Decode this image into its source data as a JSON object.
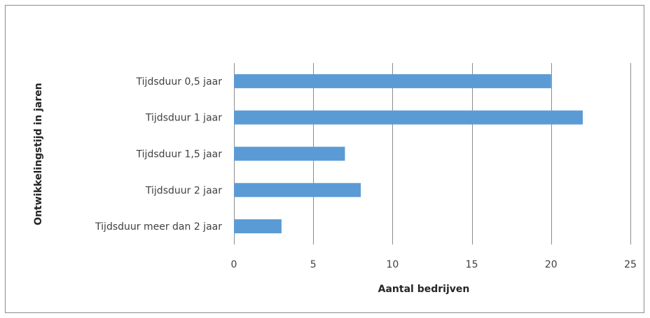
{
  "chart_data": {
    "type": "bar",
    "orientation": "horizontal",
    "categories": [
      "Tijdsduur 0,5 jaar",
      "Tijdsduur 1 jaar",
      "Tijdsduur 1,5 jaar",
      "Tijdsduur 2 jaar",
      "Tijdsduur meer dan 2 jaar"
    ],
    "values": [
      20,
      22,
      7,
      8,
      3
    ],
    "xlabel": "Aantal bedrijven",
    "ylabel": "Ontwikkelingstijd in jaren",
    "xlim": [
      0,
      25
    ],
    "x_ticks": [
      "0",
      "5",
      "10",
      "15",
      "20",
      "25"
    ],
    "grid": "vertical",
    "legend": "none",
    "colors": {
      "bar": "#5b9bd5",
      "grid": "#8c8c8c",
      "frame": "#8c8c8c"
    }
  }
}
